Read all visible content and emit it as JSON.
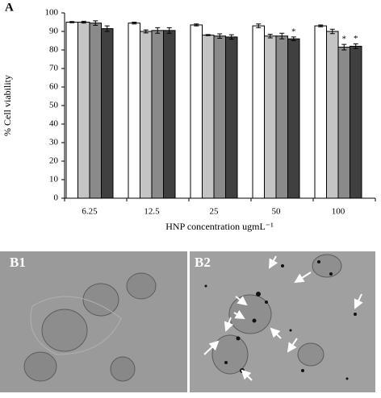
{
  "chart_data": {
    "type": "bar",
    "panel_label": "A",
    "x_label": "HNP concentration  ugmL⁻¹",
    "y_label": "% Cell viability",
    "categories": [
      "6.25",
      "12.5",
      "25",
      "50",
      "100"
    ],
    "series": [
      {
        "color": "#ffffff",
        "values": [
          95,
          94.5,
          93.5,
          93,
          93
        ],
        "errors": [
          0.3,
          0.5,
          0.5,
          1,
          0.5
        ],
        "markers": [
          null,
          null,
          null,
          null,
          null
        ]
      },
      {
        "color": "#c4c4c4",
        "values": [
          95,
          90,
          88,
          87.5,
          90
        ],
        "errors": [
          0.5,
          0.8,
          0.3,
          1,
          1.2
        ],
        "markers": [
          null,
          null,
          null,
          null,
          null
        ]
      },
      {
        "color": "#8a8a8a",
        "values": [
          94.5,
          90.5,
          87.5,
          87.5,
          81.5
        ],
        "errors": [
          1.2,
          1.5,
          1.2,
          1.5,
          1.5
        ],
        "markers": [
          null,
          null,
          null,
          null,
          "*"
        ]
      },
      {
        "color": "#404040",
        "values": [
          91.5,
          90.5,
          87,
          86,
          82
        ],
        "errors": [
          1.5,
          1.5,
          1.2,
          1,
          1.3
        ],
        "markers": [
          null,
          null,
          null,
          "*",
          "*"
        ]
      }
    ],
    "ylim": [
      0,
      100
    ],
    "yticks": [
      0,
      10,
      20,
      30,
      40,
      50,
      60,
      70,
      80,
      90,
      100
    ],
    "grid": false
  },
  "images": [
    {
      "label": "B1"
    },
    {
      "label": "B2"
    }
  ]
}
